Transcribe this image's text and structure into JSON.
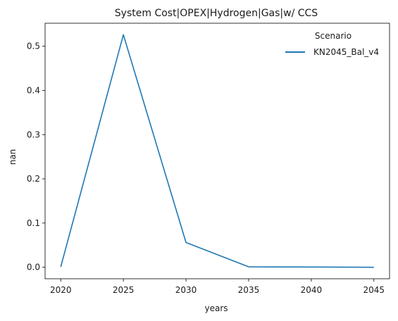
{
  "chart_data": {
    "type": "line",
    "title": "System Cost|OPEX|Hydrogen|Gas|w/ CCS",
    "xlabel": "years",
    "ylabel": "nan",
    "x": [
      2020,
      2025,
      2030,
      2035,
      2040,
      2045
    ],
    "x_ticks": [
      "2020",
      "2025",
      "2030",
      "2035",
      "2040",
      "2045"
    ],
    "y_ticks": [
      "0.0",
      "0.1",
      "0.2",
      "0.3",
      "0.4",
      "0.5"
    ],
    "xlim": [
      2018.75,
      2046.25
    ],
    "ylim": [
      -0.026,
      0.552
    ],
    "grid": false,
    "legend": {
      "title": "Scenario",
      "placement": "top-right"
    },
    "series": [
      {
        "name": "KN2045_Bal_v4",
        "color": "#1f77b4",
        "values": [
          0.001,
          0.526,
          0.056,
          0.001,
          0.0005,
          0.0
        ]
      }
    ]
  }
}
